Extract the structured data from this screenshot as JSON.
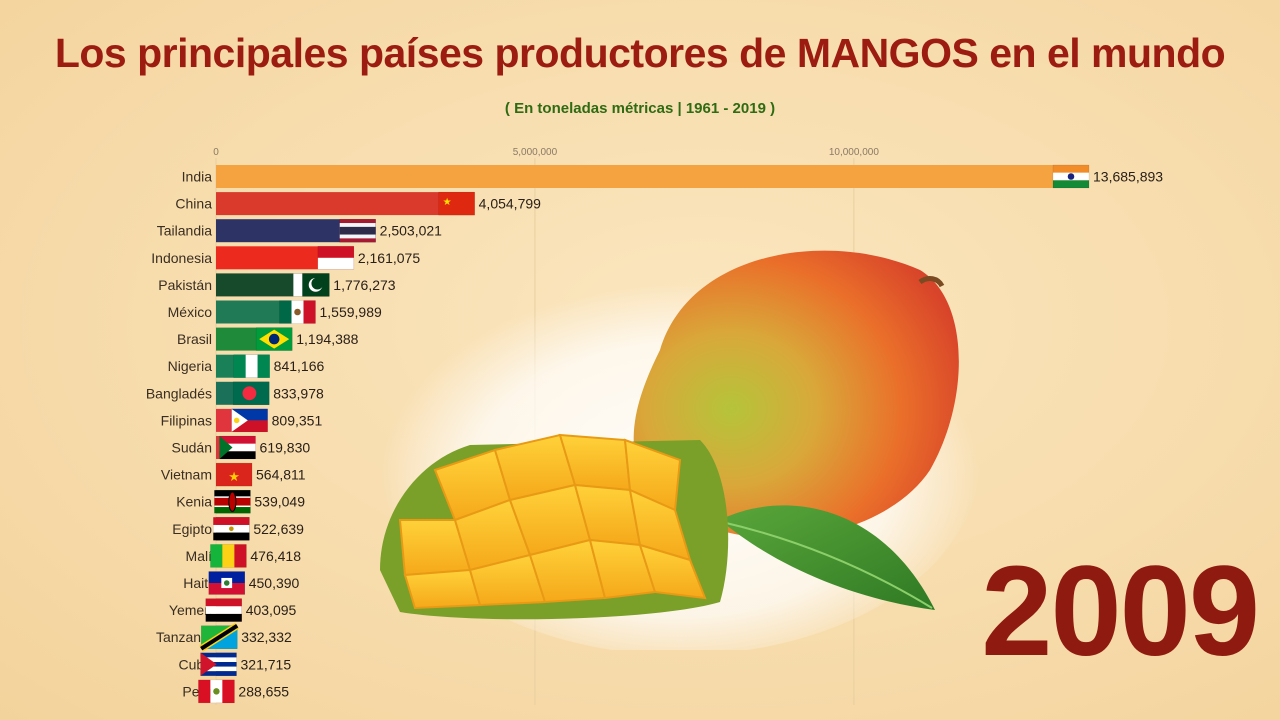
{
  "header": {
    "title": "Los principales países productores de MANGOS en el mundo",
    "subtitle": "( En toneladas métricas | 1961 - 2019 )"
  },
  "year": "2009",
  "colors": {
    "title": "#9c1c12",
    "subtitle": "#2f6b12",
    "year": "#8f1a10"
  },
  "chart_data": {
    "type": "bar",
    "orientation": "horizontal",
    "title": "Los principales países productores de MANGOS en el mundo",
    "subtitle": "( En toneladas métricas | 1961 - 2019 )",
    "xlim": [
      0,
      13685893
    ],
    "xticks": [
      0,
      5000000,
      10000000
    ],
    "xtick_labels": [
      "0",
      "5,000,000",
      "10,000,000"
    ],
    "grid": true,
    "categories": [
      "India",
      "China",
      "Tailandia",
      "Indonesia",
      "Pakistán",
      "México",
      "Brasil",
      "Nigeria",
      "Bangladés",
      "Filipinas",
      "Sudán",
      "Vietnam",
      "Kenia",
      "Egipto",
      "Malí",
      "Haití",
      "Yemen",
      "Tanzania",
      "Cuba",
      "Perú"
    ],
    "values": [
      13685893,
      4054799,
      2503021,
      2161075,
      1776273,
      1559989,
      1194388,
      841166,
      833978,
      809351,
      619830,
      564811,
      539049,
      522639,
      476418,
      450390,
      403095,
      332332,
      321715,
      288655
    ],
    "value_labels": [
      "13,685,893",
      "4,054,799",
      "2,503,021",
      "2,161,075",
      "1,776,273",
      "1,559,989",
      "1,194,388",
      "841,166",
      "833,978",
      "809,351",
      "619,830",
      "564,811",
      "539,049",
      "522,639",
      "476,418",
      "450,390",
      "403,095",
      "332,332",
      "321,715",
      "288,655"
    ],
    "bar_colors": [
      "#f5a340",
      "#d93a2c",
      "#2e3366",
      "#ed2a1e",
      "#174a2b",
      "#1f7a55",
      "#1f8a3a",
      "#1a8058",
      "#1a7058",
      "#e0353c",
      "#d9383a",
      "#f2cc0c",
      "#1d6b34",
      "#1a1a1a",
      "#e6b800",
      "#2a4aa8",
      "#d62828",
      "#3a9ad9",
      "#2a4aa8",
      "#e0302c"
    ],
    "flags": [
      "india-flag",
      "china-flag",
      "thailand-flag",
      "indonesia-flag",
      "pakistan-flag",
      "mexico-flag",
      "brazil-flag",
      "nigeria-flag",
      "bangladesh-flag",
      "philippines-flag",
      "sudan-flag",
      "vietnam-flag",
      "kenya-flag",
      "egypt-flag",
      "mali-flag",
      "haiti-flag",
      "yemen-flag",
      "tanzania-flag",
      "cuba-flag",
      "peru-flag"
    ]
  }
}
